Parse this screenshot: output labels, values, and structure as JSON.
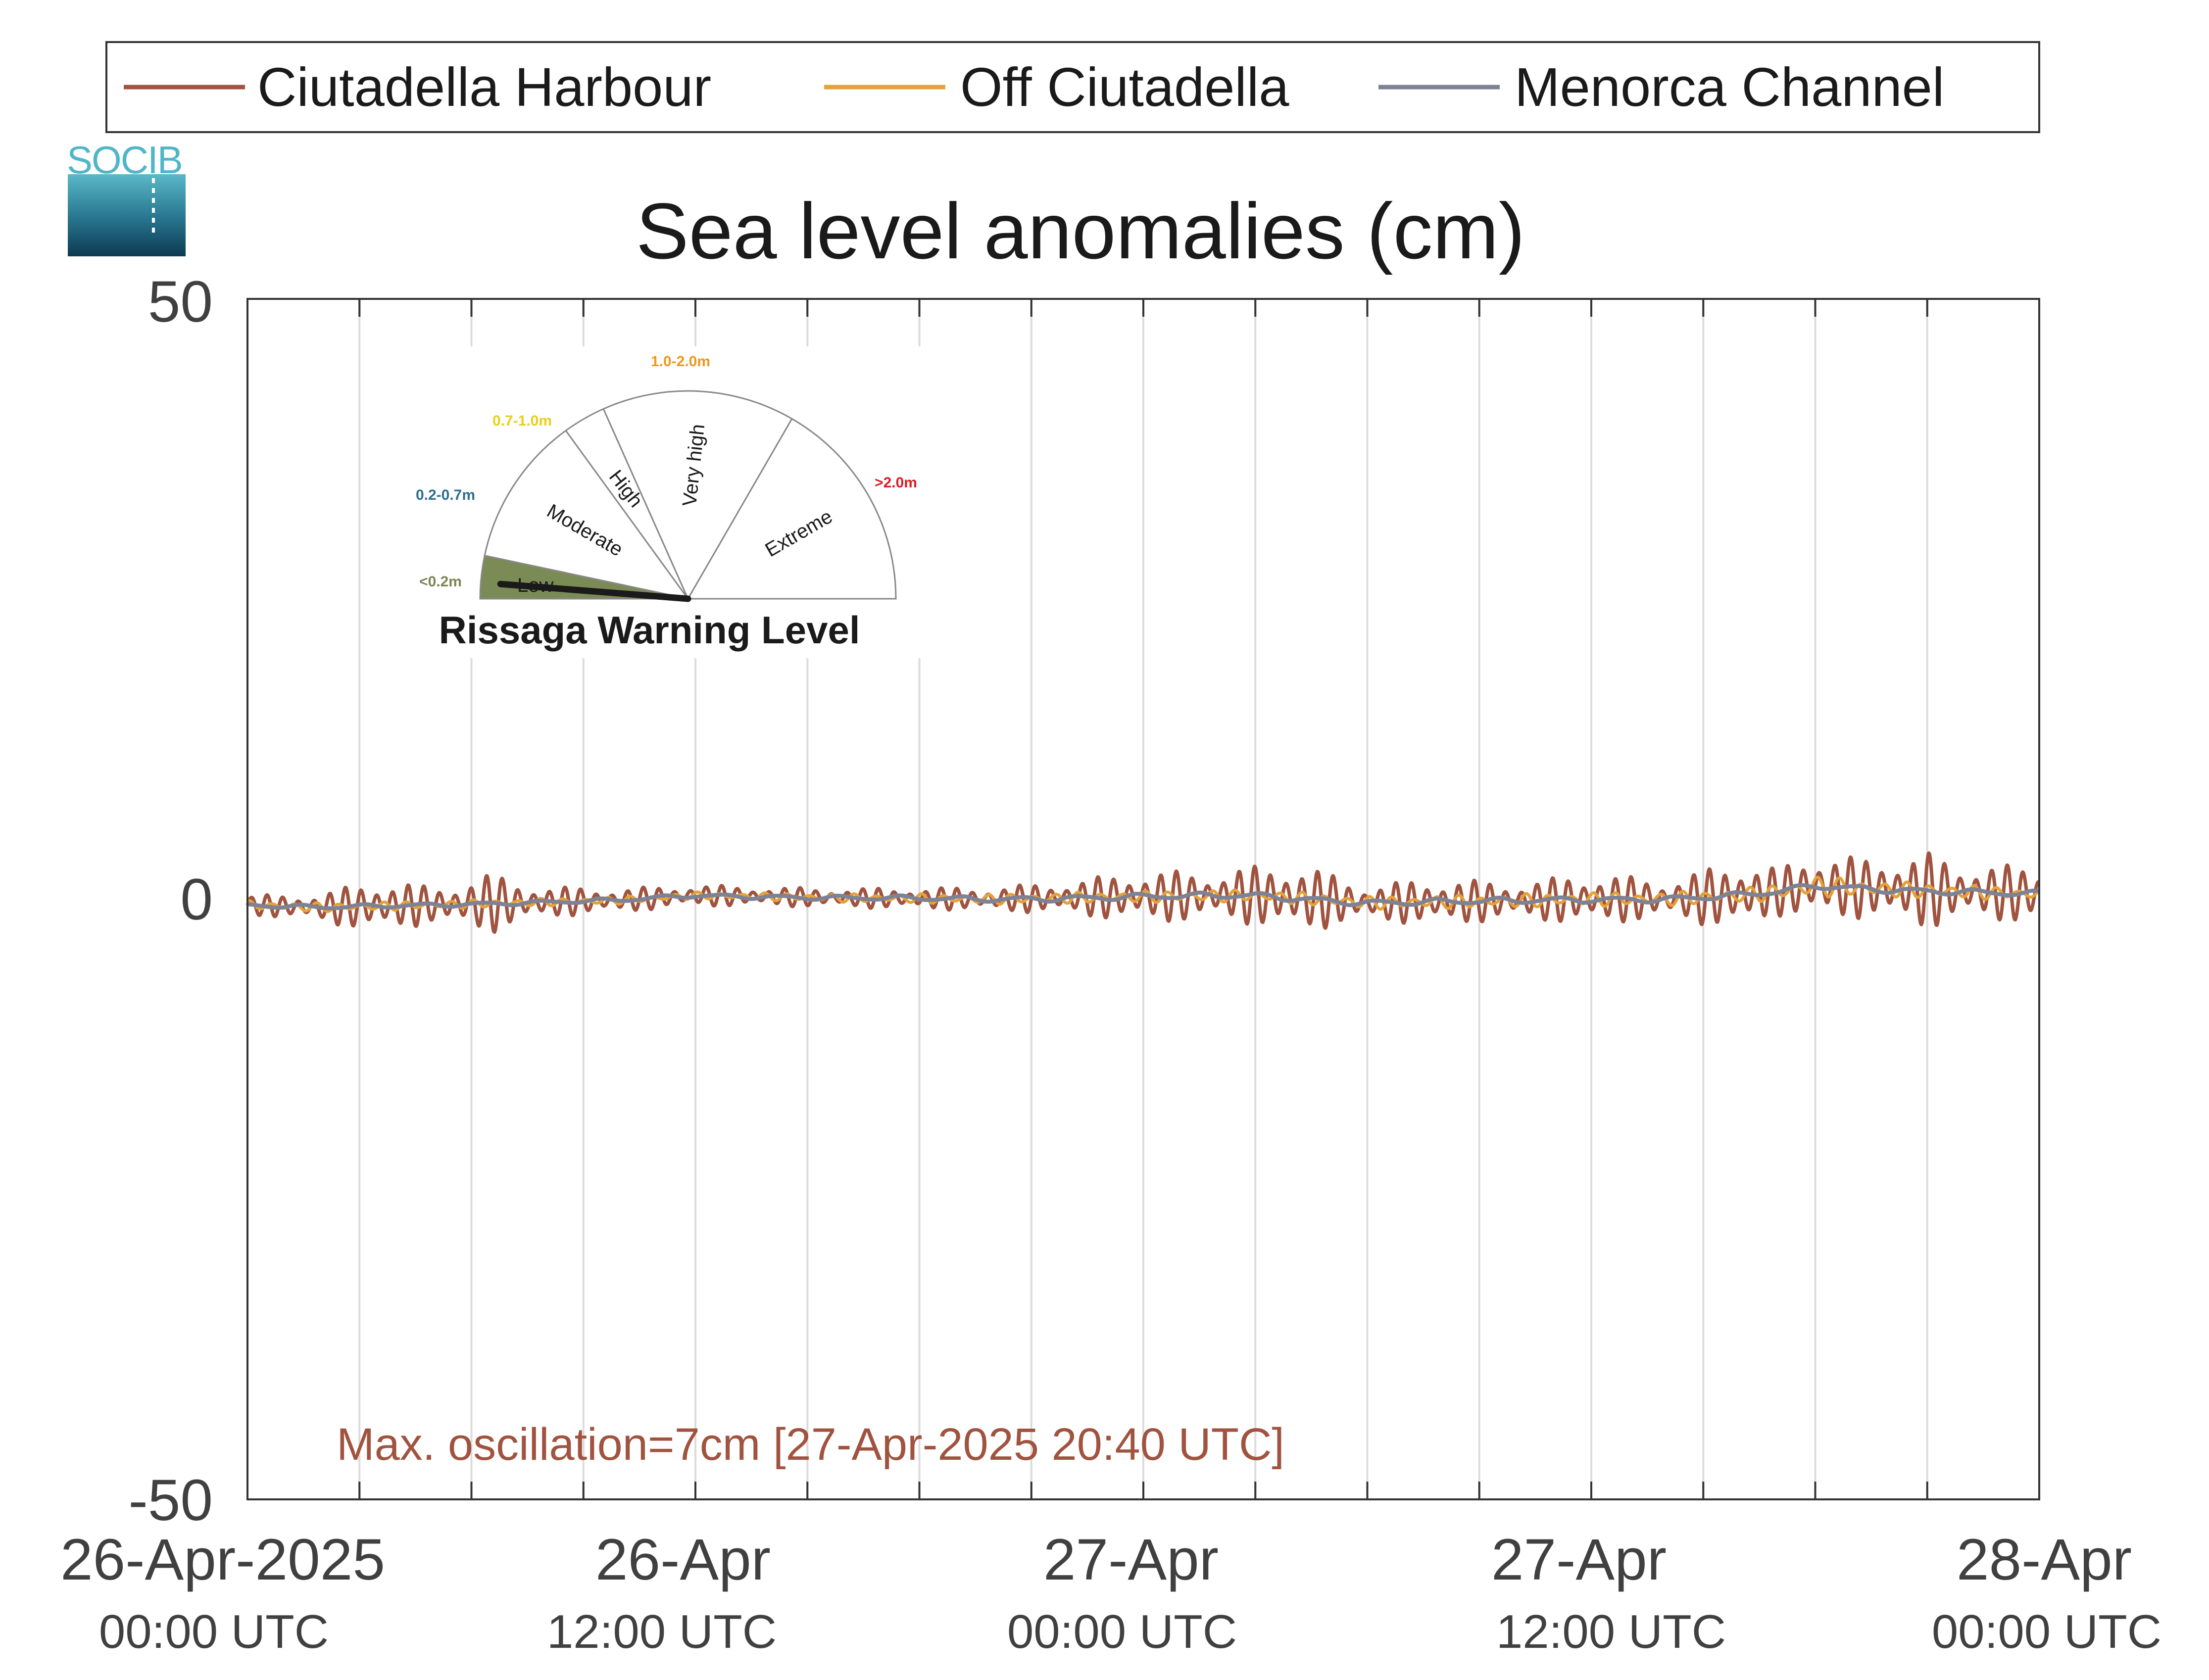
{
  "chart_data": {
    "type": "line",
    "title": "Sea level anomalies (cm)",
    "ylim": [
      -50,
      50
    ],
    "yticks": [
      "50",
      "0",
      "-50"
    ],
    "xlim_hours": [
      0,
      48
    ],
    "grid": true,
    "legend_placement": "top",
    "x_ticks": [
      {
        "date": "26-Apr-2025",
        "time": "00:00 UTC"
      },
      {
        "date": "26-Apr",
        "time": "12:00 UTC"
      },
      {
        "date": "27-Apr",
        "time": "00:00 UTC"
      },
      {
        "date": "27-Apr",
        "time": "12:00 UTC"
      },
      {
        "date": "28-Apr",
        "time": "00:00 UTC"
      }
    ],
    "series": [
      {
        "name": "Ciutadella Harbour",
        "color": "#a0533f",
        "envelope_x_hours": [
          0,
          2,
          3.5,
          5,
          6.5,
          8,
          10,
          12,
          14,
          16,
          18,
          20,
          22,
          24,
          26,
          28,
          30,
          32,
          34,
          36,
          38,
          40,
          41,
          42,
          43.5,
          45,
          46,
          48
        ],
        "envelope_amplitude": [
          0.8,
          1.2,
          2.3,
          1.5,
          2.5,
          1.3,
          1.0,
          0.9,
          0.8,
          0.8,
          0.9,
          1.0,
          1.4,
          2.2,
          2.0,
          3.0,
          1.5,
          2.0,
          1.5,
          2.2,
          1.6,
          3.0,
          2.0,
          2.8,
          2.5,
          3.2,
          2.3,
          2.4
        ]
      },
      {
        "name": "Off Ciutadella",
        "color": "#e3a23a",
        "envelope_x_hours": [
          0,
          12,
          24,
          36,
          40,
          42,
          44,
          48
        ],
        "envelope_amplitude": [
          0.4,
          0.3,
          0.5,
          0.6,
          0.6,
          0.9,
          0.7,
          0.5
        ]
      },
      {
        "name": "Menorca Channel",
        "color": "#7d8296",
        "envelope_x_hours": [
          0,
          12,
          24,
          36,
          48
        ],
        "envelope_amplitude": [
          0.2,
          0.2,
          0.3,
          0.3,
          0.3
        ]
      }
    ],
    "trend_x_hours": [
      0,
      2,
      6,
      10,
      12,
      16,
      20,
      24,
      27,
      30,
      33,
      36,
      38,
      40,
      41,
      42,
      44,
      46,
      48
    ],
    "trend_cm": [
      -0.5,
      -0.7,
      -0.4,
      -0.1,
      0.3,
      0.1,
      0.0,
      0.2,
      0.3,
      -0.3,
      -0.2,
      0.0,
      0.0,
      0.3,
      0.6,
      1.1,
      0.8,
      0.6,
      0.4
    ],
    "annotation": "Max. oscillation=7cm [27-Apr-2025 20:40 UTC]",
    "annotation_color": "#a0533f"
  },
  "logo": {
    "text": "SOCIB",
    "color": "#4fb6c8"
  },
  "gauge": {
    "title": "Rissaga Warning Level",
    "current_level": "Low",
    "levels": [
      {
        "label": "Low",
        "range": "<0.2m",
        "range_color": "#7b8556",
        "fill": "#7b8b55"
      },
      {
        "label": "Moderate",
        "range": "0.2-0.7m",
        "range_color": "#2e6e8e",
        "fill": "#ffffff"
      },
      {
        "label": "High",
        "range": "0.7-1.0m",
        "range_color": "#e8cf18",
        "fill": "#ffffff"
      },
      {
        "label": "Very high",
        "range": "1.0-2.0m",
        "range_color": "#f0961e",
        "fill": "#ffffff"
      },
      {
        "label": "Extreme",
        "range": ">2.0m",
        "range_color": "#d61e26",
        "fill": "#ffffff"
      }
    ]
  }
}
